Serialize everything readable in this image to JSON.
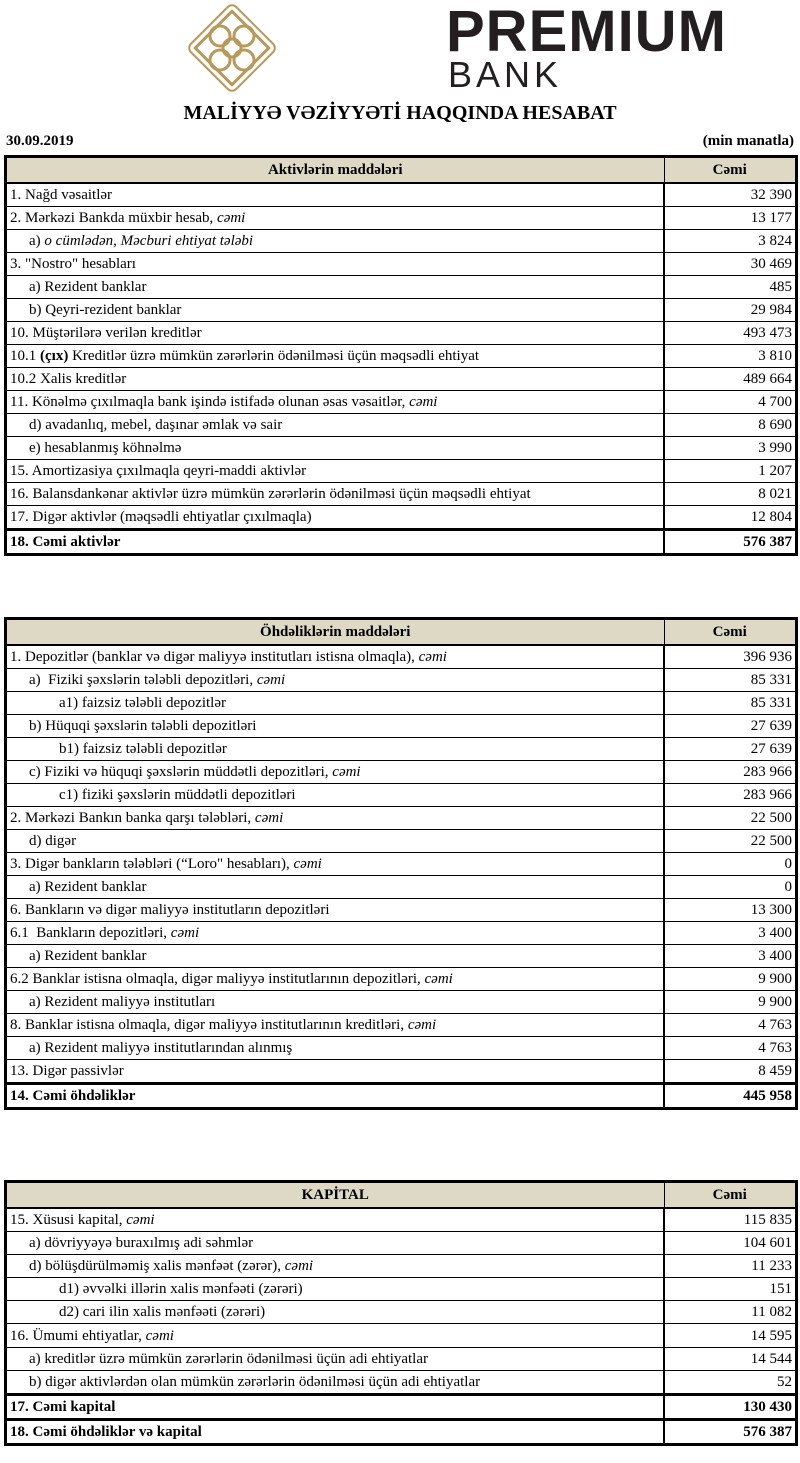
{
  "logo": {
    "line1": "PREMIUM",
    "line2": "BANK",
    "color": "#b8995a"
  },
  "title": "MALİYYƏ VƏZİYYƏTİ HAQQINDA HESABAT",
  "date": "30.09.2019",
  "unit": "(min manatla)",
  "header_color": "#ddd9c4",
  "sections": [
    {
      "header": "Aktivlərin   maddələri",
      "value_header": "Cəmi",
      "rows": [
        {
          "parts": [
            {
              "t": "1. Nağd vəsaitlər"
            }
          ],
          "value": "32 390",
          "indent": 0
        },
        {
          "parts": [
            {
              "t": "2. Mərkəzi Bankda müxbir hesab, "
            },
            {
              "t": "cəmi",
              "s": "i"
            }
          ],
          "value": "13 177",
          "indent": 0
        },
        {
          "parts": [
            {
              "t": "a) "
            },
            {
              "t": "o cümlədən, Məcburi ehtiyat tələbi",
              "s": "i"
            }
          ],
          "value": "3 824",
          "indent": 1
        },
        {
          "parts": [
            {
              "t": "3. \"Nostro\" hesabları"
            }
          ],
          "value": "30 469",
          "indent": 0
        },
        {
          "parts": [
            {
              "t": "a) Rezident banklar"
            }
          ],
          "value": "485",
          "indent": 1
        },
        {
          "parts": [
            {
              "t": "b) Qeyri-rezident banklar"
            }
          ],
          "value": "29 984",
          "indent": 1
        },
        {
          "parts": [
            {
              "t": "10. Müştərilərə verilən kreditlər"
            }
          ],
          "value": "493 473",
          "indent": 0
        },
        {
          "parts": [
            {
              "t": "10.1 "
            },
            {
              "t": "(çıx)",
              "s": "b"
            },
            {
              "t": " Kreditlər üzrə mümkün zərərlərin ödənilməsi üçün məqsədli ehtiyat"
            }
          ],
          "value": "3 810",
          "indent": 0
        },
        {
          "parts": [
            {
              "t": "10.2 Xalis kreditlər"
            }
          ],
          "value": "489 664",
          "indent": 0
        },
        {
          "parts": [
            {
              "t": "11. Könəlmə çıxılmaqla bank işində istifadə olunan əsas vəsaitlər, "
            },
            {
              "t": "cəmi",
              "s": "i"
            }
          ],
          "value": "4 700",
          "indent": 0
        },
        {
          "parts": [
            {
              "t": "d) avadanlıq, mebel, daşınar əmlak və sair"
            }
          ],
          "value": "8 690",
          "indent": 1
        },
        {
          "parts": [
            {
              "t": "e) hesablanmış köhnəlmə"
            }
          ],
          "value": "3 990",
          "indent": 1
        },
        {
          "parts": [
            {
              "t": "15. Amortizasiya çıxılmaqla qeyri-maddi aktivlər"
            }
          ],
          "value": "1 207",
          "indent": 0
        },
        {
          "parts": [
            {
              "t": "16. Balansdankənar aktivlər üzrə mümkün zərərlərin ödənilməsi üçün məqsədli ehtiyat"
            }
          ],
          "value": "8 021",
          "indent": 0
        },
        {
          "parts": [
            {
              "t": "17. Digər aktivlər (məqsədli ehtiyatlar çıxılmaqla)"
            }
          ],
          "value": "12 804",
          "indent": 0
        },
        {
          "parts": [
            {
              "t": "18. Cəmi aktivlər"
            }
          ],
          "value": "576 387",
          "indent": 0,
          "total": true
        }
      ]
    },
    {
      "header": "Öhdəliklərin maddələri",
      "value_header": "Cəmi",
      "rows": [
        {
          "parts": [
            {
              "t": "1. Depozitlər (banklar və digər maliyyə institutları istisna olmaqla), "
            },
            {
              "t": "cəmi",
              "s": "i"
            }
          ],
          "value": "396 936",
          "indent": 0
        },
        {
          "parts": [
            {
              "t": "a)  Fiziki şəxslərin tələbli depozitləri, "
            },
            {
              "t": "cəmi",
              "s": "i"
            }
          ],
          "value": "85 331",
          "indent": 1
        },
        {
          "parts": [
            {
              "t": "a1) faizsiz tələbli depozitlər"
            }
          ],
          "value": "85 331",
          "indent": 2
        },
        {
          "parts": [
            {
              "t": "b) Hüquqi şəxslərin tələbli depozitləri"
            }
          ],
          "value": "27 639",
          "indent": 1
        },
        {
          "parts": [
            {
              "t": "b1) faizsiz tələbli depozitlər"
            }
          ],
          "value": "27 639",
          "indent": 2
        },
        {
          "parts": [
            {
              "t": "c) Fiziki və hüquqi şəxslərin müddətli depozitləri, "
            },
            {
              "t": "cəmi",
              "s": "i"
            }
          ],
          "value": "283 966",
          "indent": 1
        },
        {
          "parts": [
            {
              "t": "c1) fiziki şəxslərin müddətli depozitləri"
            }
          ],
          "value": "283 966",
          "indent": 2
        },
        {
          "parts": [
            {
              "t": "2. Mərkəzi Bankın banka qarşı tələbləri, "
            },
            {
              "t": "cəmi",
              "s": "i"
            }
          ],
          "value": "22 500",
          "indent": 0
        },
        {
          "parts": [
            {
              "t": "d) digər"
            }
          ],
          "value": "22 500",
          "indent": 1
        },
        {
          "parts": [
            {
              "t": "3. Digər bankların tələbləri (“Loro\" hesabları), "
            },
            {
              "t": "cəmi",
              "s": "i"
            }
          ],
          "value": "0",
          "indent": 0
        },
        {
          "parts": [
            {
              "t": "a) Rezident banklar"
            }
          ],
          "value": "0",
          "indent": 1
        },
        {
          "parts": [
            {
              "t": "6. Bankların və digər maliyyə institutların depozitləri"
            }
          ],
          "value": "13 300",
          "indent": 0
        },
        {
          "parts": [
            {
              "t": "6.1  Bankların depozitləri, "
            },
            {
              "t": "cəmi",
              "s": "i"
            }
          ],
          "value": "3 400",
          "indent": 0
        },
        {
          "parts": [
            {
              "t": "a) Rezident banklar"
            }
          ],
          "value": "3 400",
          "indent": 1
        },
        {
          "parts": [
            {
              "t": "6.2 Banklar istisna olmaqla, digər maliyyə institutlarının depozitləri, "
            },
            {
              "t": "cəmi",
              "s": "i"
            }
          ],
          "value": "9 900",
          "indent": 0
        },
        {
          "parts": [
            {
              "t": "a) Rezident maliyyə institutları"
            }
          ],
          "value": "9 900",
          "indent": 1
        },
        {
          "parts": [
            {
              "t": "8. Banklar istisna olmaqla, digər maliyyə institutlarının kreditləri, "
            },
            {
              "t": "cəmi",
              "s": "i"
            }
          ],
          "value": "4 763",
          "indent": 0
        },
        {
          "parts": [
            {
              "t": "a) Rezident maliyyə institutlarından alınmış"
            }
          ],
          "value": "4 763",
          "indent": 1
        },
        {
          "parts": [
            {
              "t": "13. Digər passivlər"
            }
          ],
          "value": "8 459",
          "indent": 0
        },
        {
          "parts": [
            {
              "t": "14. Cəmi öhdəliklər"
            }
          ],
          "value": "445 958",
          "indent": 0,
          "total": true
        }
      ]
    },
    {
      "header": "KAPİTAL",
      "value_header": "Cəmi",
      "rows": [
        {
          "parts": [
            {
              "t": "15. Xüsusi kapital, "
            },
            {
              "t": "cəmi",
              "s": "i"
            }
          ],
          "value": "115 835",
          "indent": 0
        },
        {
          "parts": [
            {
              "t": "a) dövriyyəyə buraxılmış adi səhmlər"
            }
          ],
          "value": "104 601",
          "indent": 1
        },
        {
          "parts": [
            {
              "t": "d) bölüşdürülməmiş xalis mənfəət (zərər), "
            },
            {
              "t": "cəmi",
              "s": "i"
            }
          ],
          "value": "11 233",
          "indent": 1
        },
        {
          "parts": [
            {
              "t": "d1) əvvəlki illərin xalis mənfəəti (zərəri)"
            }
          ],
          "value": "151",
          "indent": 2
        },
        {
          "parts": [
            {
              "t": "d2) cari ilin xalis mənfəəti (zərəri)"
            }
          ],
          "value": "11 082",
          "indent": 2
        },
        {
          "parts": [
            {
              "t": "16. Ümumi ehtiyatlar, "
            },
            {
              "t": "cəmi",
              "s": "i"
            }
          ],
          "value": "14 595",
          "indent": 0
        },
        {
          "parts": [
            {
              "t": "a) kreditlər üzrə mümkün zərərlərin ödənilməsi üçün adi ehtiyatlar"
            }
          ],
          "value": "14 544",
          "indent": 1
        },
        {
          "parts": [
            {
              "t": "b) digər aktivlərdən olan mümkün zərərlərin ödənilməsi üçün adi ehtiyatlar"
            }
          ],
          "value": "52",
          "indent": 1
        },
        {
          "parts": [
            {
              "t": "17. Cəmi kapital"
            }
          ],
          "value": "130 430",
          "indent": 0,
          "total": true
        },
        {
          "parts": [
            {
              "t": "18. Cəmi öhdəliklər və kapital"
            }
          ],
          "value": "576 387",
          "indent": 0,
          "total": true
        }
      ]
    }
  ]
}
